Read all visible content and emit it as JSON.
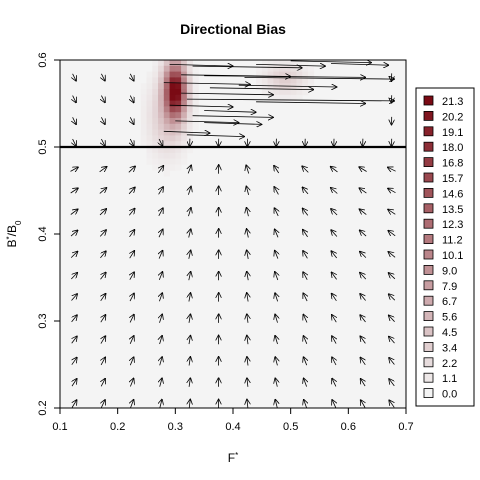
{
  "chart_data": {
    "type": "heatmap",
    "title": "Directional Bias",
    "xlabel": "F*",
    "ylabel": "B*/B0",
    "xlim": [
      0.1,
      0.7
    ],
    "ylim": [
      0.2,
      0.6
    ],
    "x_ticks": [
      "0.1",
      "0.2",
      "0.3",
      "0.4",
      "0.5",
      "0.6",
      "0.7"
    ],
    "y_ticks": [
      "0.2",
      "0.3",
      "0.4",
      "0.5",
      "0.6"
    ],
    "reference_line_y": 0.5,
    "legend": {
      "position": "right",
      "entries": [
        "21.3",
        "20.2",
        "19.1",
        "18.0",
        "16.8",
        "15.7",
        "14.6",
        "13.5",
        "12.3",
        "11.2",
        "10.1",
        "9.0",
        "7.9",
        "6.7",
        "5.6",
        "4.5",
        "3.4",
        "2.2",
        "1.1",
        "0.0"
      ],
      "color_high": "#7a0a14",
      "color_low": "#f4f4f4"
    },
    "density_peaks": [
      {
        "x": 0.3,
        "y": 0.565,
        "value": 21.3
      },
      {
        "x": 0.49,
        "y": 0.578,
        "value": 3.5
      }
    ],
    "vector_field": "arrows pointing toward target region; long rightward arrows for B*/B0 > 0.53"
  }
}
